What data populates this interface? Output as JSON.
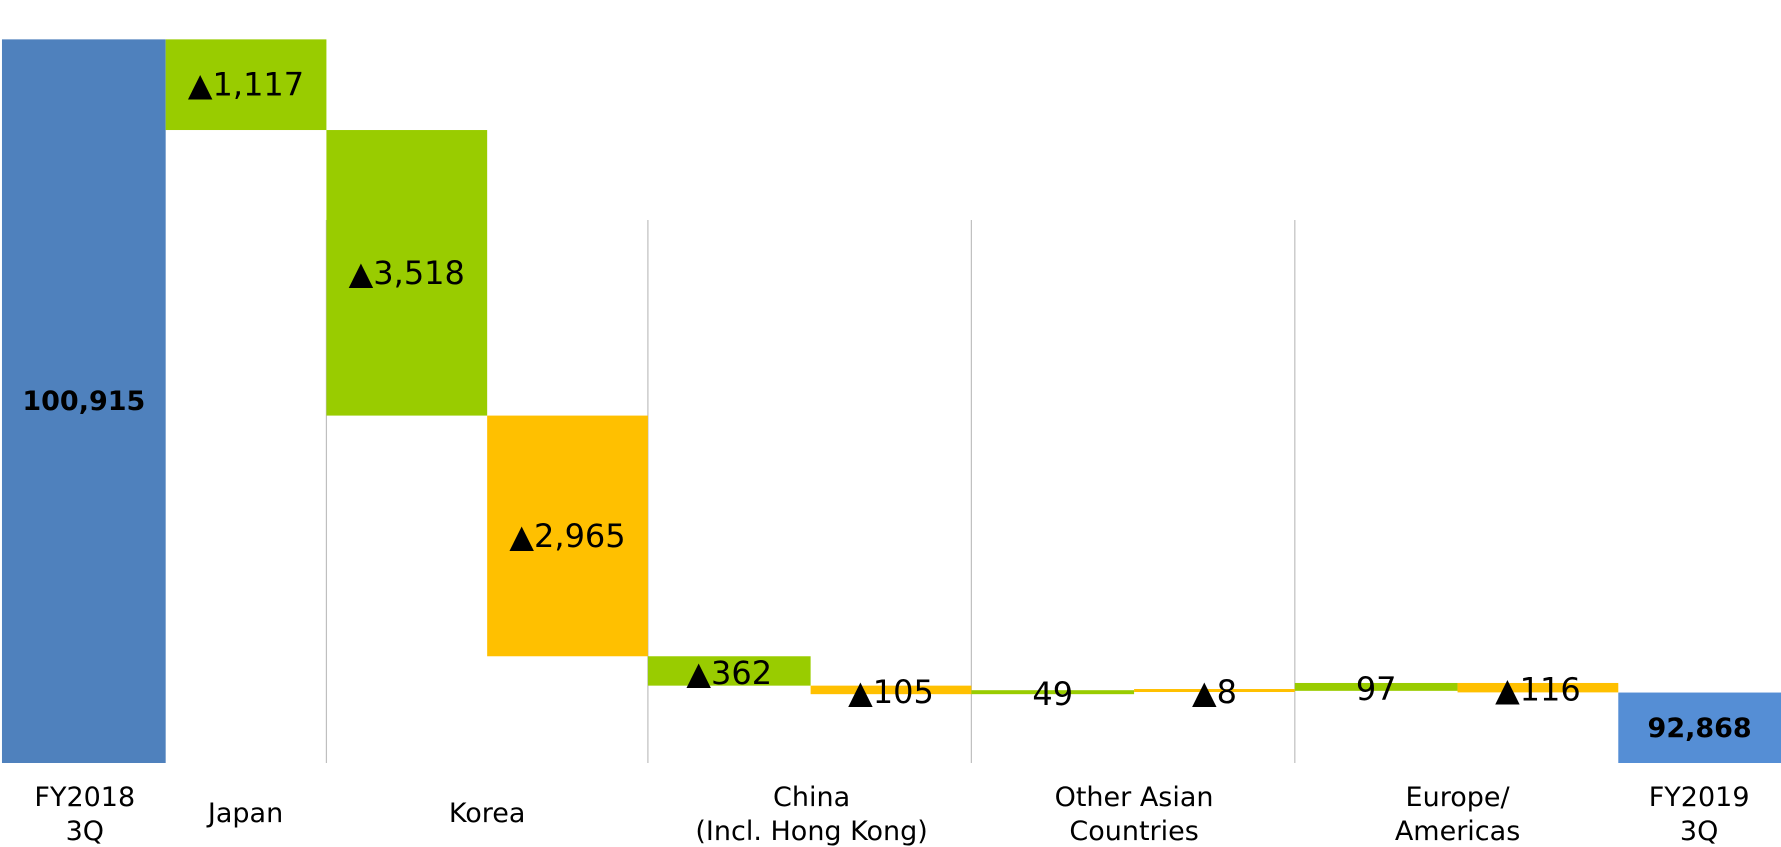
{
  "chart_data": {
    "type": "waterfall",
    "title": "",
    "xlabel": "",
    "ylabel": "",
    "ylim": [
      92000,
      101400
    ],
    "colors": {
      "total_start": "#4F81BD",
      "total_end": "#558ED5",
      "segment_green": "#99CC00",
      "segment_orange": "#FFC000",
      "divider": "#BFBFBF"
    },
    "categories": [
      {
        "label_lines": [
          "FY2018",
          "3Q"
        ]
      },
      {
        "label_lines": [
          "Japan"
        ]
      },
      {
        "label_lines": [
          "Korea"
        ]
      },
      {
        "label_lines": [
          "China",
          "(Incl. Hong Kong)"
        ]
      },
      {
        "label_lines": [
          "Other Asian",
          "Countries"
        ]
      },
      {
        "label_lines": [
          "Europe/",
          "Americas"
        ]
      },
      {
        "label_lines": [
          "FY2019",
          "3Q"
        ]
      }
    ],
    "bars": [
      {
        "kind": "total",
        "category": 0,
        "value": 100915,
        "label": "100,915",
        "color": "total_start"
      },
      {
        "kind": "change",
        "category": 1,
        "value": -1117,
        "label": "▲1,117",
        "color": "segment_green"
      },
      {
        "kind": "change",
        "category": 2,
        "value": -3518,
        "label": "▲3,518",
        "color": "segment_green"
      },
      {
        "kind": "change",
        "category": 2,
        "value": -2965,
        "label": "▲2,965",
        "color": "segment_orange"
      },
      {
        "kind": "change",
        "category": 3,
        "value": -362,
        "label": "▲362",
        "color": "segment_green"
      },
      {
        "kind": "change",
        "category": 3,
        "value": -105,
        "label": "▲105",
        "color": "segment_orange"
      },
      {
        "kind": "change",
        "category": 4,
        "value": 49,
        "label": "49",
        "color": "segment_green"
      },
      {
        "kind": "change",
        "category": 4,
        "value": -8,
        "label": "▲8",
        "color": "segment_orange"
      },
      {
        "kind": "change",
        "category": 5,
        "value": 97,
        "label": "97",
        "color": "segment_green"
      },
      {
        "kind": "change",
        "category": 5,
        "value": -116,
        "label": "▲116",
        "color": "segment_orange"
      },
      {
        "kind": "total",
        "category": 6,
        "value": 92868,
        "label": "92,868",
        "color": "total_end"
      }
    ]
  }
}
